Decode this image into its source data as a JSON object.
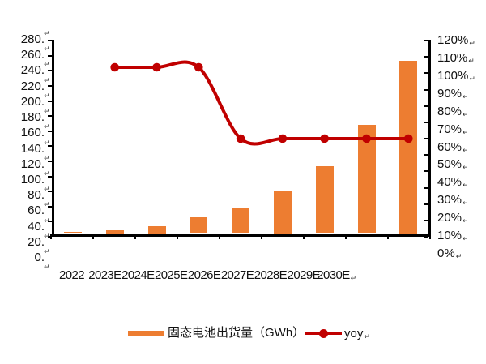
{
  "chart_data": {
    "type": "bar-line-combo",
    "categories": [
      "2022",
      "2023E",
      "2024E",
      "2025E",
      "2026E",
      "2027E",
      "2028E",
      "2029E",
      "2030E"
    ],
    "series": [
      {
        "name": "固态电池出货量（GWh）",
        "type": "bar",
        "axis": "left",
        "color": "#ED7D31",
        "values": [
          3,
          5,
          10,
          22,
          34,
          55,
          88,
          142,
          225
        ]
      },
      {
        "name": "yoy",
        "type": "line",
        "axis": "right",
        "color": "#C00000",
        "values": [
          null,
          105,
          105,
          105,
          65,
          65,
          65,
          65,
          65
        ],
        "unit": "%"
      }
    ],
    "left_axis": {
      "min": 0,
      "max": 280,
      "step": 20,
      "tick_labels": [
        "280.",
        "260.",
        "240.",
        "220.",
        "200.",
        "180.",
        "160.",
        "140.",
        "120.",
        "100.",
        "80.",
        "60.",
        "40.",
        "20.",
        "0."
      ]
    },
    "right_axis": {
      "min": "0%",
      "max": "120%",
      "step": "10%",
      "tick_labels": [
        "120%",
        "110%",
        "100%",
        "90%",
        "80%",
        "70%",
        "60%",
        "50%",
        "40%",
        "30%",
        "20%",
        "10%",
        "0%"
      ]
    },
    "legend": {
      "bar_label": "固态电池出货量（GWh）",
      "line_label": "yoy"
    },
    "grid": false,
    "smooth_line": true,
    "background": "#ffffff"
  },
  "marks": {
    "return_mark": "↵"
  }
}
